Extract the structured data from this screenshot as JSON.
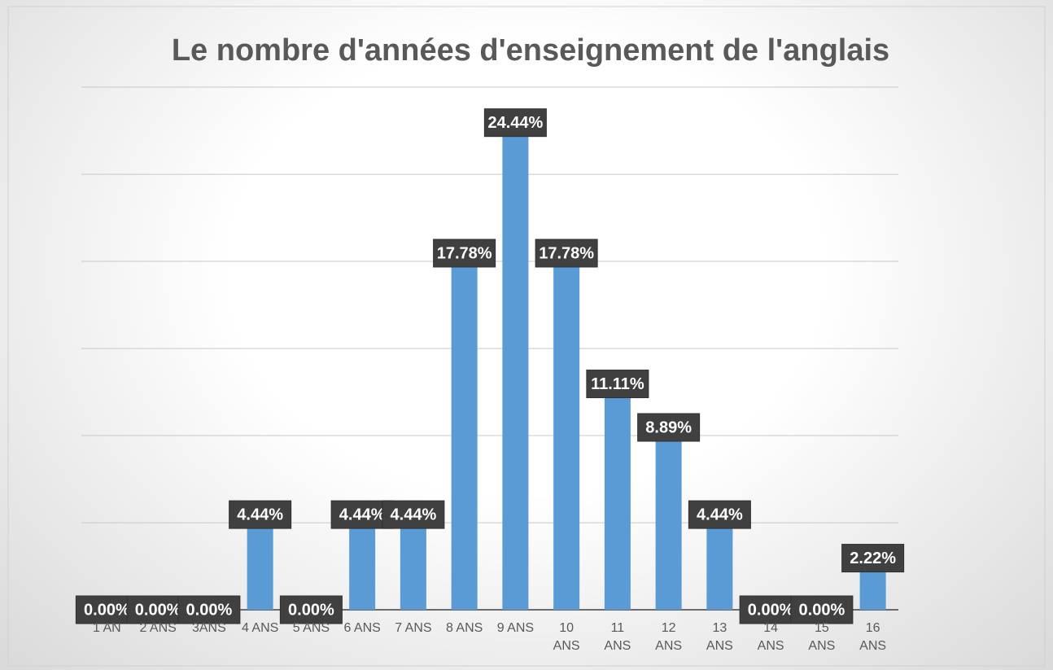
{
  "chart_data": {
    "type": "bar",
    "title": "Le nombre d'années d'enseignement de l'anglais",
    "categories": [
      "1 AN",
      "2 ANS",
      "3ANS",
      "4 ANS",
      "5 ANS",
      "6 ANS",
      "7 ANS",
      "8 ANS",
      "9 ANS",
      "10 ANS",
      "11 ANS",
      "12 ANS",
      "13 ANS",
      "14 ANS",
      "15 ANS",
      "16 ANS"
    ],
    "values": [
      0,
      0,
      0,
      4.44,
      0,
      4.44,
      4.44,
      17.78,
      24.44,
      17.78,
      11.11,
      8.89,
      4.44,
      0,
      0,
      2.22
    ],
    "value_labels": [
      "0.00%",
      "0.00%",
      "0.00%",
      "4.44%",
      "0.00%",
      "4.44%",
      "4.44%",
      "17.78%",
      "24.44%",
      "17.78%",
      "11.11%",
      "8.89%",
      "4.44%",
      "0.00%",
      "0.00%",
      "2.22%"
    ],
    "color": "#5b9bd5",
    "ylim": [
      0,
      26.67
    ],
    "yticks": [
      0,
      4.44,
      8.89,
      13.33,
      17.78,
      22.22,
      26.67
    ],
    "grid": true
  }
}
